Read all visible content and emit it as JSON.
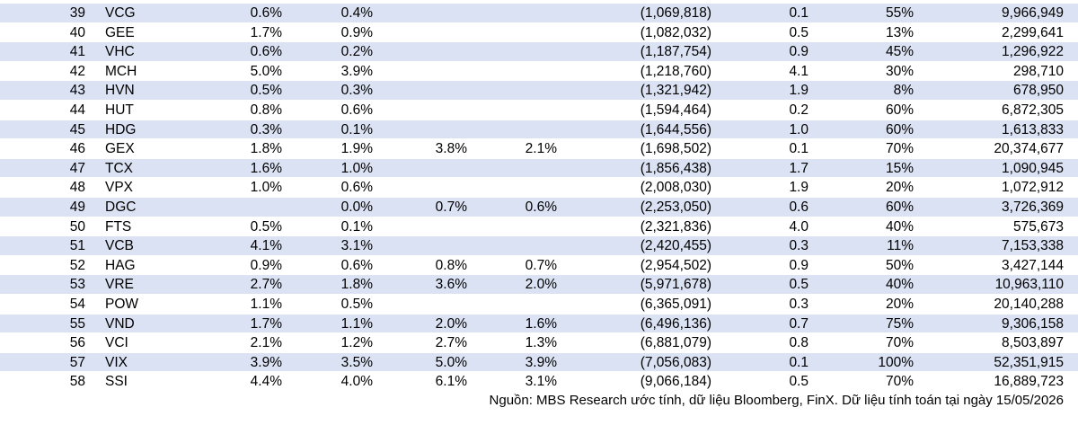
{
  "table": {
    "rows": [
      {
        "no": "39",
        "ticker": "VCG",
        "a": "0.6%",
        "b": "0.4%",
        "c": "",
        "d": "",
        "e": "(1,069,818)",
        "f": "0.1",
        "g": "55%",
        "h": "9,966,949"
      },
      {
        "no": "40",
        "ticker": "GEE",
        "a": "1.7%",
        "b": "0.9%",
        "c": "",
        "d": "",
        "e": "(1,082,032)",
        "f": "0.5",
        "g": "13%",
        "h": "2,299,641"
      },
      {
        "no": "41",
        "ticker": "VHC",
        "a": "0.6%",
        "b": "0.2%",
        "c": "",
        "d": "",
        "e": "(1,187,754)",
        "f": "0.9",
        "g": "45%",
        "h": "1,296,922"
      },
      {
        "no": "42",
        "ticker": "MCH",
        "a": "5.0%",
        "b": "3.9%",
        "c": "",
        "d": "",
        "e": "(1,218,760)",
        "f": "4.1",
        "g": "30%",
        "h": "298,710"
      },
      {
        "no": "43",
        "ticker": "HVN",
        "a": "0.5%",
        "b": "0.3%",
        "c": "",
        "d": "",
        "e": "(1,321,942)",
        "f": "1.9",
        "g": "8%",
        "h": "678,950"
      },
      {
        "no": "44",
        "ticker": "HUT",
        "a": "0.8%",
        "b": "0.6%",
        "c": "",
        "d": "",
        "e": "(1,594,464)",
        "f": "0.2",
        "g": "60%",
        "h": "6,872,305"
      },
      {
        "no": "45",
        "ticker": "HDG",
        "a": "0.3%",
        "b": "0.1%",
        "c": "",
        "d": "",
        "e": "(1,644,556)",
        "f": "1.0",
        "g": "60%",
        "h": "1,613,833"
      },
      {
        "no": "46",
        "ticker": "GEX",
        "a": "1.8%",
        "b": "1.9%",
        "c": "3.8%",
        "d": "2.1%",
        "e": "(1,698,502)",
        "f": "0.1",
        "g": "70%",
        "h": "20,374,677"
      },
      {
        "no": "47",
        "ticker": "TCX",
        "a": "1.6%",
        "b": "1.0%",
        "c": "",
        "d": "",
        "e": "(1,856,438)",
        "f": "1.7",
        "g": "15%",
        "h": "1,090,945"
      },
      {
        "no": "48",
        "ticker": "VPX",
        "a": "1.0%",
        "b": "0.6%",
        "c": "",
        "d": "",
        "e": "(2,008,030)",
        "f": "1.9",
        "g": "20%",
        "h": "1,072,912"
      },
      {
        "no": "49",
        "ticker": "DGC",
        "a": "",
        "b": "0.0%",
        "c": "0.7%",
        "d": "0.6%",
        "e": "(2,253,050)",
        "f": "0.6",
        "g": "60%",
        "h": "3,726,369"
      },
      {
        "no": "50",
        "ticker": "FTS",
        "a": "0.5%",
        "b": "0.1%",
        "c": "",
        "d": "",
        "e": "(2,321,836)",
        "f": "4.0",
        "g": "40%",
        "h": "575,673"
      },
      {
        "no": "51",
        "ticker": "VCB",
        "a": "4.1%",
        "b": "3.1%",
        "c": "",
        "d": "",
        "e": "(2,420,455)",
        "f": "0.3",
        "g": "11%",
        "h": "7,153,338"
      },
      {
        "no": "52",
        "ticker": "HAG",
        "a": "0.9%",
        "b": "0.6%",
        "c": "0.8%",
        "d": "0.7%",
        "e": "(2,954,502)",
        "f": "0.9",
        "g": "50%",
        "h": "3,427,144"
      },
      {
        "no": "53",
        "ticker": "VRE",
        "a": "2.7%",
        "b": "1.8%",
        "c": "3.6%",
        "d": "2.0%",
        "e": "(5,971,678)",
        "f": "0.5",
        "g": "40%",
        "h": "10,963,110"
      },
      {
        "no": "54",
        "ticker": "POW",
        "a": "1.1%",
        "b": "0.5%",
        "c": "",
        "d": "",
        "e": "(6,365,091)",
        "f": "0.3",
        "g": "20%",
        "h": "20,140,288"
      },
      {
        "no": "55",
        "ticker": "VND",
        "a": "1.7%",
        "b": "1.1%",
        "c": "2.0%",
        "d": "1.6%",
        "e": "(6,496,136)",
        "f": "0.7",
        "g": "75%",
        "h": "9,306,158"
      },
      {
        "no": "56",
        "ticker": "VCI",
        "a": "2.1%",
        "b": "1.2%",
        "c": "2.7%",
        "d": "1.3%",
        "e": "(6,881,079)",
        "f": "0.8",
        "g": "70%",
        "h": "8,503,897"
      },
      {
        "no": "57",
        "ticker": "VIX",
        "a": "3.9%",
        "b": "3.5%",
        "c": "5.0%",
        "d": "3.9%",
        "e": "(7,056,083)",
        "f": "0.1",
        "g": "100%",
        "h": "52,351,915"
      },
      {
        "no": "58",
        "ticker": "SSI",
        "a": "4.4%",
        "b": "4.0%",
        "c": "6.1%",
        "d": "3.1%",
        "e": "(9,066,184)",
        "f": "0.5",
        "g": "70%",
        "h": "16,889,723"
      }
    ]
  },
  "source_note": "Nguồn: MBS Research ước tính, dữ liệu Bloomberg, FinX. Dữ liệu tính toán tại ngày 15/05/2026",
  "colors": {
    "row_shade": "#dbe2f3",
    "row_plain": "#ffffff"
  }
}
